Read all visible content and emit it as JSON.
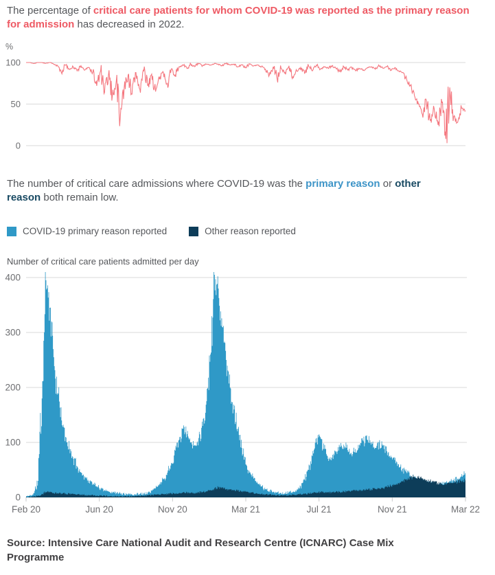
{
  "page": {
    "heading1": {
      "prefix": "The percentage of ",
      "highlight": "critical care patients for whom COVID-19 was reported as the primary reason for admission",
      "suffix": " has decreased in 2022."
    },
    "heading2": {
      "prefix": "The number of critical care admissions where COVID-19 was the ",
      "highlight_primary": "primary reason",
      "middle": " or ",
      "highlight_other": "other reason",
      "suffix": " both remain low."
    },
    "source": "Source: Intensive Care National Audit and Research Centre (ICNARC) Case Mix Programme"
  },
  "legend": {
    "items": [
      {
        "label": "COVID-19 primary reason reported",
        "color": "#2f99c7"
      },
      {
        "label": "Other reason reported",
        "color": "#0d3d59"
      }
    ]
  },
  "colors": {
    "heading_red": "#ee5a64",
    "heading_blue": "#3d94c7",
    "heading_navy": "#194a63",
    "line_red": "#f4777f",
    "area_blue": "#2f99c7",
    "area_navy": "#0d3d59",
    "gridline": "#d9d9d9",
    "tick_text": "#6d6e71",
    "tick_mark": "#c9cacb"
  },
  "chart_data": [
    {
      "type": "line",
      "title": "",
      "ylabel": "%",
      "xlabel": "",
      "ylim": [
        0,
        100
      ],
      "y_ticks": [
        100,
        50,
        0
      ],
      "x_start": "Feb 20",
      "x_end": "Mar 22",
      "resolution": "weekly estimates",
      "grid": true,
      "series": [
        {
          "name": "Percentage of critical care patients with COVID-19 reported as primary reason for admission",
          "color": "#f4777f",
          "values": [
            100,
            100,
            99,
            100,
            100,
            99,
            100,
            98,
            96,
            88,
            97,
            92,
            95,
            90,
            96,
            91,
            94,
            88,
            72,
            90,
            64,
            85,
            60,
            78,
            33,
            70,
            85,
            62,
            88,
            68,
            90,
            72,
            86,
            65,
            80,
            88,
            75,
            92,
            85,
            95,
            97,
            93,
            98,
            95,
            99,
            96,
            98,
            97,
            99,
            98,
            96,
            99,
            97,
            98,
            95,
            97,
            94,
            98,
            96,
            97,
            95,
            92,
            85,
            95,
            80,
            93,
            88,
            96,
            83,
            90,
            94,
            87,
            96,
            90,
            97,
            92,
            95,
            93,
            96,
            93,
            89,
            95,
            91,
            94,
            90,
            93,
            91,
            94,
            95,
            92,
            96,
            93,
            95,
            91,
            94,
            90,
            88,
            80,
            72,
            60,
            50,
            38,
            55,
            30,
            45,
            25,
            52,
            8,
            70,
            35,
            28,
            45,
            42
          ]
        }
      ]
    },
    {
      "type": "area",
      "title": "Number of critical care patients admitted per day",
      "ylabel": "",
      "xlabel": "",
      "ylim": [
        0,
        400
      ],
      "y_ticks": [
        400,
        300,
        200,
        100,
        0
      ],
      "x_tick_labels": [
        "Feb 20",
        "Jun 20",
        "Nov 20",
        "Mar 21",
        "Jul 21",
        "Nov 21",
        "Mar 22"
      ],
      "resolution": "weekly estimates",
      "grid": true,
      "legend_position": "top",
      "series": [
        {
          "name": "COVID-19 primary reason reported",
          "color": "#2f99c7",
          "values": [
            2,
            3,
            8,
            30,
            180,
            395,
            345,
            255,
            190,
            140,
            110,
            88,
            70,
            56,
            45,
            36,
            30,
            25,
            20,
            16,
            13,
            11,
            9,
            8,
            7,
            6,
            5,
            5,
            6,
            6,
            7,
            9,
            12,
            17,
            24,
            33,
            45,
            62,
            85,
            105,
            125,
            115,
            100,
            95,
            108,
            130,
            175,
            260,
            405,
            380,
            310,
            250,
            200,
            160,
            125,
            90,
            60,
            45,
            34,
            26,
            20,
            15,
            12,
            10,
            9,
            8,
            8,
            9,
            10,
            13,
            20,
            32,
            50,
            75,
            100,
            110,
            88,
            70,
            72,
            82,
            92,
            96,
            86,
            78,
            88,
            96,
            102,
            105,
            96,
            90,
            100,
            94,
            84,
            76,
            68,
            60,
            52,
            46,
            40,
            36,
            33,
            30,
            28,
            26,
            25,
            24,
            25,
            27,
            29,
            31,
            34,
            38,
            44
          ]
        },
        {
          "name": "Other reason reported",
          "color": "#0d3d59",
          "values": [
            1,
            1,
            2,
            3,
            6,
            10,
            9,
            8,
            8,
            7,
            7,
            6,
            6,
            5,
            5,
            4,
            4,
            4,
            3,
            3,
            3,
            2,
            2,
            2,
            2,
            2,
            2,
            2,
            3,
            3,
            3,
            4,
            4,
            5,
            5,
            6,
            6,
            7,
            7,
            8,
            9,
            9,
            8,
            8,
            9,
            10,
            11,
            13,
            16,
            18,
            17,
            15,
            14,
            13,
            12,
            11,
            10,
            9,
            8,
            7,
            6,
            5,
            5,
            4,
            4,
            4,
            4,
            4,
            5,
            5,
            6,
            6,
            7,
            8,
            9,
            10,
            9,
            9,
            9,
            10,
            10,
            11,
            11,
            12,
            12,
            13,
            14,
            14,
            15,
            15,
            16,
            17,
            19,
            21,
            23,
            26,
            29,
            33,
            36,
            38,
            36,
            34,
            32,
            30,
            28,
            26,
            25,
            25,
            26,
            27,
            28,
            30,
            31
          ]
        }
      ]
    }
  ]
}
